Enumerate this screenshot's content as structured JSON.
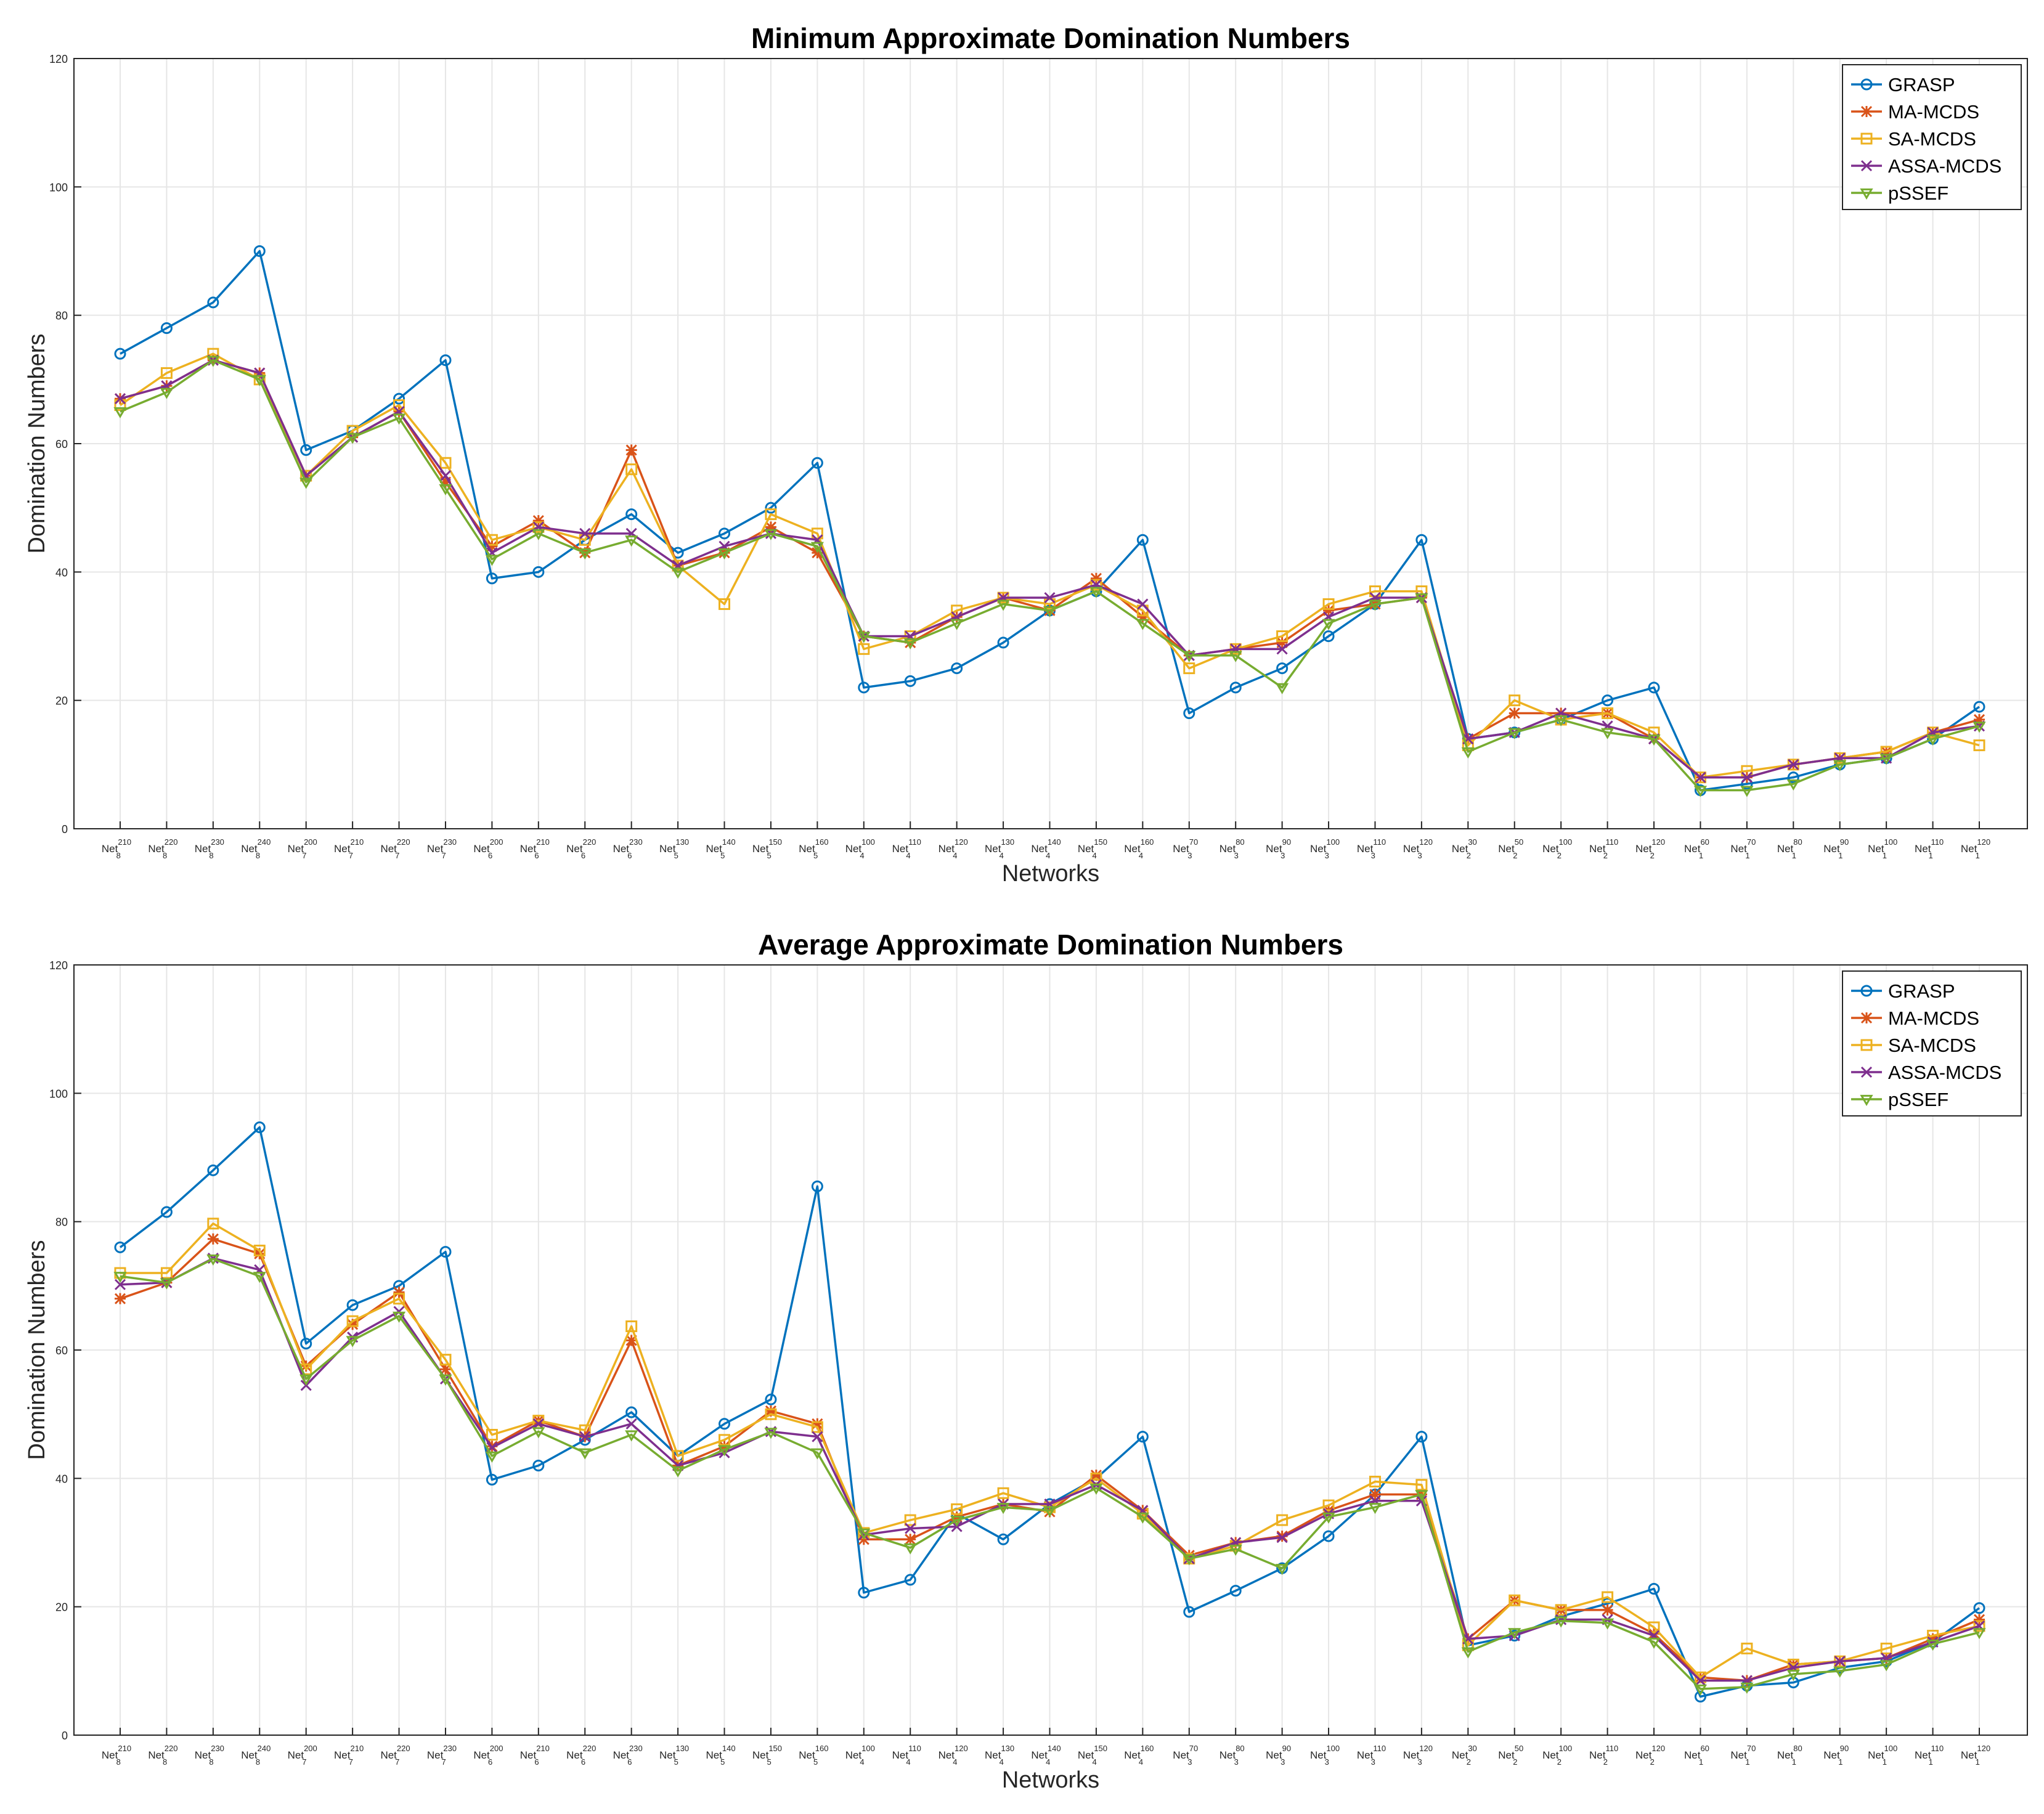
{
  "chart_data": [
    {
      "type": "line",
      "title": "Minimum Approximate Domination Numbers",
      "xlabel": "Networks",
      "ylabel": "Domination Numbers",
      "ylim": [
        0,
        120
      ],
      "yticks": [
        0,
        20,
        40,
        60,
        80,
        100,
        120
      ],
      "grid": true,
      "legend": "top-right",
      "categories": [
        {
          "base": "Net",
          "sup": "210",
          "sub": "8"
        },
        {
          "base": "Net",
          "sup": "220",
          "sub": "8"
        },
        {
          "base": "Net",
          "sup": "230",
          "sub": "8"
        },
        {
          "base": "Net",
          "sup": "240",
          "sub": "8"
        },
        {
          "base": "Net",
          "sup": "200",
          "sub": "7"
        },
        {
          "base": "Net",
          "sup": "210",
          "sub": "7"
        },
        {
          "base": "Net",
          "sup": "220",
          "sub": "7"
        },
        {
          "base": "Net",
          "sup": "230",
          "sub": "7"
        },
        {
          "base": "Net",
          "sup": "200",
          "sub": "6"
        },
        {
          "base": "Net",
          "sup": "210",
          "sub": "6"
        },
        {
          "base": "Net",
          "sup": "220",
          "sub": "6"
        },
        {
          "base": "Net",
          "sup": "230",
          "sub": "6"
        },
        {
          "base": "Net",
          "sup": "130",
          "sub": "5"
        },
        {
          "base": "Net",
          "sup": "140",
          "sub": "5"
        },
        {
          "base": "Net",
          "sup": "150",
          "sub": "5"
        },
        {
          "base": "Net",
          "sup": "160",
          "sub": "5"
        },
        {
          "base": "Net",
          "sup": "100",
          "sub": "4"
        },
        {
          "base": "Net",
          "sup": "110",
          "sub": "4"
        },
        {
          "base": "Net",
          "sup": "120",
          "sub": "4"
        },
        {
          "base": "Net",
          "sup": "130",
          "sub": "4"
        },
        {
          "base": "Net",
          "sup": "140",
          "sub": "4"
        },
        {
          "base": "Net",
          "sup": "150",
          "sub": "4"
        },
        {
          "base": "Net",
          "sup": "160",
          "sub": "4"
        },
        {
          "base": "Net",
          "sup": "70",
          "sub": "3"
        },
        {
          "base": "Net",
          "sup": "80",
          "sub": "3"
        },
        {
          "base": "Net",
          "sup": "90",
          "sub": "3"
        },
        {
          "base": "Net",
          "sup": "100",
          "sub": "3"
        },
        {
          "base": "Net",
          "sup": "110",
          "sub": "3"
        },
        {
          "base": "Net",
          "sup": "120",
          "sub": "3"
        },
        {
          "base": "Net",
          "sup": "30",
          "sub": "2"
        },
        {
          "base": "Net",
          "sup": "50",
          "sub": "2"
        },
        {
          "base": "Net",
          "sup": "100",
          "sub": "2"
        },
        {
          "base": "Net",
          "sup": "110",
          "sub": "2"
        },
        {
          "base": "Net",
          "sup": "120",
          "sub": "2"
        },
        {
          "base": "Net",
          "sup": "60",
          "sub": "1"
        },
        {
          "base": "Net",
          "sup": "70",
          "sub": "1"
        },
        {
          "base": "Net",
          "sup": "80",
          "sub": "1"
        },
        {
          "base": "Net",
          "sup": "90",
          "sub": "1"
        },
        {
          "base": "Net",
          "sup": "100",
          "sub": "1"
        },
        {
          "base": "Net",
          "sup": "110",
          "sub": "1"
        },
        {
          "base": "Net",
          "sup": "120",
          "sub": "1"
        }
      ],
      "series": [
        {
          "name": "GRASP",
          "color": "#0072BD",
          "marker": "circle",
          "values": [
            74,
            78,
            82,
            90,
            59,
            62,
            67,
            73,
            39,
            40,
            45,
            49,
            43,
            46,
            50,
            57,
            22,
            23,
            25,
            29,
            34,
            37,
            45,
            18,
            22,
            25,
            30,
            35,
            45,
            14,
            15,
            17,
            20,
            22,
            6,
            7,
            8,
            10,
            11,
            14,
            19
          ]
        },
        {
          "name": "MA-MCDS",
          "color": "#D95319",
          "marker": "asterisk",
          "values": [
            67,
            69,
            73,
            71,
            55,
            61,
            65,
            54,
            44,
            48,
            43,
            59,
            41,
            43,
            47,
            43,
            30,
            29,
            33,
            36,
            34,
            39,
            33,
            27,
            28,
            29,
            34,
            35,
            36,
            14,
            18,
            18,
            18,
            14,
            8,
            8,
            10,
            11,
            12,
            15,
            17
          ]
        },
        {
          "name": "SA-MCDS",
          "color": "#EDB120",
          "marker": "square",
          "values": [
            66,
            71,
            74,
            70,
            55,
            62,
            66,
            57,
            45,
            47,
            45,
            56,
            41,
            35,
            49,
            46,
            28,
            30,
            34,
            36,
            35,
            38,
            34,
            25,
            28,
            30,
            35,
            37,
            37,
            13,
            20,
            17,
            18,
            15,
            8,
            9,
            10,
            11,
            12,
            15,
            13
          ]
        },
        {
          "name": "ASSA-MCDS",
          "color": "#7E2F8E",
          "marker": "x",
          "values": [
            67,
            69,
            73,
            71,
            55,
            61,
            65,
            55,
            43,
            47,
            46,
            46,
            41,
            44,
            46,
            45,
            30,
            30,
            33,
            36,
            36,
            38,
            35,
            27,
            28,
            28,
            33,
            36,
            36,
            14,
            15,
            18,
            16,
            14,
            8,
            8,
            10,
            11,
            11,
            15,
            16
          ]
        },
        {
          "name": "pSSEF",
          "color": "#77AC30",
          "marker": "triangle-down",
          "values": [
            65,
            68,
            73,
            70,
            54,
            61,
            64,
            53,
            42,
            46,
            43,
            45,
            40,
            43,
            46,
            44,
            30,
            29,
            32,
            35,
            34,
            37,
            32,
            27,
            27,
            22,
            32,
            35,
            36,
            12,
            15,
            17,
            15,
            14,
            6,
            6,
            7,
            10,
            11,
            14,
            16
          ]
        }
      ]
    },
    {
      "type": "line",
      "title": "Average Approximate Domination Numbers",
      "xlabel": "Networks",
      "ylabel": "Domination Numbers",
      "ylim": [
        0,
        120
      ],
      "yticks": [
        0,
        20,
        40,
        60,
        80,
        100,
        120
      ],
      "grid": true,
      "legend": "top-right",
      "categories": [
        {
          "base": "Net",
          "sup": "210",
          "sub": "8"
        },
        {
          "base": "Net",
          "sup": "220",
          "sub": "8"
        },
        {
          "base": "Net",
          "sup": "230",
          "sub": "8"
        },
        {
          "base": "Net",
          "sup": "240",
          "sub": "8"
        },
        {
          "base": "Net",
          "sup": "200",
          "sub": "7"
        },
        {
          "base": "Net",
          "sup": "210",
          "sub": "7"
        },
        {
          "base": "Net",
          "sup": "220",
          "sub": "7"
        },
        {
          "base": "Net",
          "sup": "230",
          "sub": "7"
        },
        {
          "base": "Net",
          "sup": "200",
          "sub": "6"
        },
        {
          "base": "Net",
          "sup": "210",
          "sub": "6"
        },
        {
          "base": "Net",
          "sup": "220",
          "sub": "6"
        },
        {
          "base": "Net",
          "sup": "230",
          "sub": "6"
        },
        {
          "base": "Net",
          "sup": "130",
          "sub": "5"
        },
        {
          "base": "Net",
          "sup": "140",
          "sub": "5"
        },
        {
          "base": "Net",
          "sup": "150",
          "sub": "5"
        },
        {
          "base": "Net",
          "sup": "160",
          "sub": "5"
        },
        {
          "base": "Net",
          "sup": "100",
          "sub": "4"
        },
        {
          "base": "Net",
          "sup": "110",
          "sub": "4"
        },
        {
          "base": "Net",
          "sup": "120",
          "sub": "4"
        },
        {
          "base": "Net",
          "sup": "130",
          "sub": "4"
        },
        {
          "base": "Net",
          "sup": "140",
          "sub": "4"
        },
        {
          "base": "Net",
          "sup": "150",
          "sub": "4"
        },
        {
          "base": "Net",
          "sup": "160",
          "sub": "4"
        },
        {
          "base": "Net",
          "sup": "70",
          "sub": "3"
        },
        {
          "base": "Net",
          "sup": "80",
          "sub": "3"
        },
        {
          "base": "Net",
          "sup": "90",
          "sub": "3"
        },
        {
          "base": "Net",
          "sup": "100",
          "sub": "3"
        },
        {
          "base": "Net",
          "sup": "110",
          "sub": "3"
        },
        {
          "base": "Net",
          "sup": "120",
          "sub": "3"
        },
        {
          "base": "Net",
          "sup": "30",
          "sub": "2"
        },
        {
          "base": "Net",
          "sup": "50",
          "sub": "2"
        },
        {
          "base": "Net",
          "sup": "100",
          "sub": "2"
        },
        {
          "base": "Net",
          "sup": "110",
          "sub": "2"
        },
        {
          "base": "Net",
          "sup": "120",
          "sub": "2"
        },
        {
          "base": "Net",
          "sup": "60",
          "sub": "1"
        },
        {
          "base": "Net",
          "sup": "70",
          "sub": "1"
        },
        {
          "base": "Net",
          "sup": "80",
          "sub": "1"
        },
        {
          "base": "Net",
          "sup": "90",
          "sub": "1"
        },
        {
          "base": "Net",
          "sup": "100",
          "sub": "1"
        },
        {
          "base": "Net",
          "sup": "110",
          "sub": "1"
        },
        {
          "base": "Net",
          "sup": "120",
          "sub": "1"
        }
      ],
      "series": [
        {
          "name": "GRASP",
          "color": "#0072BD",
          "marker": "circle",
          "values": [
            76,
            81.5,
            88,
            94.7,
            61,
            67,
            70,
            75.3,
            39.8,
            42,
            46,
            50.3,
            43.5,
            48.5,
            52.3,
            85.5,
            22.2,
            24.2,
            34.5,
            30.5,
            36,
            40,
            46.5,
            19.2,
            22.5,
            26,
            31,
            37.5,
            46.5,
            14,
            15.5,
            18.5,
            20.5,
            22.8,
            6,
            7.7,
            8.2,
            10.5,
            11.5,
            14.5,
            19.8
          ]
        },
        {
          "name": "MA-MCDS",
          "color": "#D95319",
          "marker": "asterisk",
          "values": [
            68,
            70.5,
            77.3,
            75,
            57.5,
            64,
            69,
            57,
            45,
            49,
            46.5,
            61.5,
            42,
            45,
            50.5,
            48.5,
            30.5,
            30.5,
            34,
            36,
            34.8,
            40.5,
            35,
            28,
            30,
            31,
            35,
            37.5,
            37.5,
            15,
            21,
            19.5,
            19.5,
            15.8,
            9,
            8.5,
            11,
            11.5,
            12,
            15,
            18
          ]
        },
        {
          "name": "SA-MCDS",
          "color": "#EDB120",
          "marker": "square",
          "values": [
            72,
            72,
            79.7,
            75.5,
            57,
            64.5,
            68,
            58.5,
            46.8,
            49,
            47.5,
            63.7,
            43.5,
            46,
            50,
            48,
            31.5,
            33.5,
            35.2,
            37.7,
            35.5,
            40,
            34.5,
            27.5,
            29.5,
            33.5,
            35.8,
            39.5,
            39,
            14,
            21,
            19.5,
            21.5,
            16.8,
            9,
            13.5,
            11,
            11.5,
            13.5,
            15.5,
            17
          ]
        },
        {
          "name": "ASSA-MCDS",
          "color": "#7E2F8E",
          "marker": "x",
          "values": [
            70.2,
            70.5,
            74.3,
            72.5,
            54.5,
            62,
            66,
            55.5,
            44.8,
            48.5,
            46.5,
            48.5,
            42,
            44,
            47.3,
            46.5,
            31.2,
            32.2,
            32.5,
            36,
            36,
            39,
            35,
            27.5,
            30,
            30.8,
            34.5,
            36.5,
            36.5,
            15,
            15.5,
            18,
            18,
            15.5,
            8.5,
            8.5,
            10.5,
            11.5,
            12,
            14.5,
            17
          ]
        },
        {
          "name": "pSSEF",
          "color": "#77AC30",
          "marker": "triangle-down",
          "values": [
            71.5,
            70.5,
            74.2,
            71.5,
            55.5,
            61.5,
            65.3,
            55.5,
            43.5,
            47.3,
            44,
            46.8,
            41.2,
            44.5,
            47.2,
            44,
            31.5,
            29.2,
            33.5,
            35.5,
            35,
            38.5,
            34,
            27.5,
            29,
            26,
            34,
            35.5,
            37.5,
            13,
            16,
            17.8,
            17.5,
            14.5,
            7.2,
            7.5,
            9.5,
            10,
            11,
            14.2,
            16
          ]
        }
      ]
    }
  ]
}
